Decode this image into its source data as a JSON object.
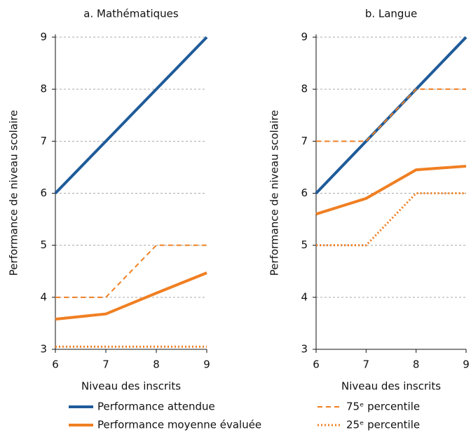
{
  "chart_data": [
    {
      "type": "line",
      "title": "a. Mathématiques",
      "xlabel": "Niveau des inscrits",
      "ylabel": "Performance de niveau scolaire",
      "x": [
        6,
        7,
        8,
        9
      ],
      "xlim": [
        6,
        9
      ],
      "xticks": [
        6,
        7,
        8,
        9
      ],
      "ylim": [
        3,
        9
      ],
      "yticks": [
        3,
        4,
        5,
        6,
        7,
        8,
        9
      ],
      "grid": true,
      "series": [
        {
          "name": "Performance attendue",
          "color": "#1f5b99",
          "style": "solid",
          "width": 4,
          "values": [
            6,
            7,
            8,
            9
          ]
        },
        {
          "name": "Performance moyenne évaluée",
          "color": "#f07f22",
          "style": "solid",
          "width": 4,
          "values": [
            3.58,
            3.68,
            4.08,
            4.47
          ]
        },
        {
          "name": "75ᵉ percentile",
          "color": "#f07f22",
          "style": "dashed",
          "width": 2,
          "values": [
            4,
            4,
            5,
            5
          ]
        },
        {
          "name": "25ᵉ percentile",
          "color": "#f07f22",
          "style": "dotted",
          "width": 3,
          "values": [
            3.05,
            3.05,
            3.05,
            3.05
          ]
        }
      ]
    },
    {
      "type": "line",
      "title": "b. Langue",
      "xlabel": "Niveau des inscrits",
      "ylabel": "Performance de niveau scolaire",
      "x": [
        6,
        7,
        8,
        9
      ],
      "xlim": [
        6,
        9
      ],
      "xticks": [
        6,
        7,
        8,
        9
      ],
      "ylim": [
        3,
        9
      ],
      "yticks": [
        3,
        4,
        5,
        6,
        7,
        8,
        9
      ],
      "grid": true,
      "series": [
        {
          "name": "Performance attendue",
          "color": "#1f5b99",
          "style": "solid",
          "width": 4,
          "values": [
            6,
            7,
            8,
            9
          ]
        },
        {
          "name": "Performance moyenne évaluée",
          "color": "#f07f22",
          "style": "solid",
          "width": 4,
          "values": [
            5.6,
            5.9,
            6.45,
            6.52
          ]
        },
        {
          "name": "75ᵉ percentile",
          "color": "#f07f22",
          "style": "dashed",
          "width": 2,
          "values": [
            7,
            7,
            8,
            8
          ]
        },
        {
          "name": "25ᵉ percentile",
          "color": "#f07f22",
          "style": "dotted",
          "width": 3,
          "values": [
            5,
            5,
            6,
            6
          ]
        }
      ]
    }
  ]
}
